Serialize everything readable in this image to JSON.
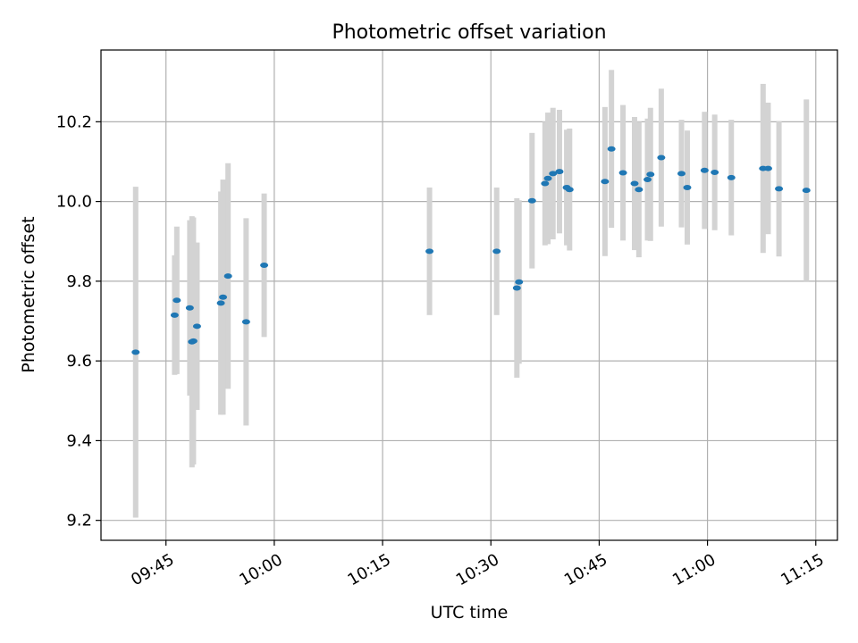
{
  "chart_data": {
    "type": "scatter",
    "title": "Photometric offset variation",
    "xlabel": "UTC time",
    "ylabel": "Photometric offset",
    "x_tick_labels": [
      "09:45",
      "10:00",
      "10:15",
      "10:30",
      "10:45",
      "11:00",
      "11:15"
    ],
    "x_tick_values": [
      "09:45",
      "10:00",
      "10:15",
      "10:30",
      "10:45",
      "11:00",
      "11:15"
    ],
    "y_ticks": [
      9.2,
      9.4,
      9.6,
      9.8,
      10.0,
      10.2
    ],
    "xlim": [
      "09:36",
      "11:18"
    ],
    "ylim": [
      9.15,
      10.38
    ],
    "grid": true,
    "colors": {
      "marker": "#1f77b4",
      "errorbar": "#d3d3d3",
      "grid": "#b0b0b0"
    },
    "points": [
      {
        "x": "09:40:48",
        "y": 9.622,
        "yerr": 0.415
      },
      {
        "x": "09:46:12",
        "y": 9.715,
        "yerr": 0.15
      },
      {
        "x": "09:46:30",
        "y": 9.752,
        "yerr": 0.185
      },
      {
        "x": "09:48:18",
        "y": 9.733,
        "yerr": 0.22
      },
      {
        "x": "09:48:36",
        "y": 9.648,
        "yerr": 0.315
      },
      {
        "x": "09:48:48",
        "y": 9.65,
        "yerr": 0.31
      },
      {
        "x": "09:49:18",
        "y": 9.687,
        "yerr": 0.21
      },
      {
        "x": "09:52:36",
        "y": 9.745,
        "yerr": 0.28
      },
      {
        "x": "09:52:54",
        "y": 9.76,
        "yerr": 0.295
      },
      {
        "x": "09:53:36",
        "y": 9.813,
        "yerr": 0.283
      },
      {
        "x": "09:56:06",
        "y": 9.698,
        "yerr": 0.26
      },
      {
        "x": "09:58:36",
        "y": 9.84,
        "yerr": 0.18
      },
      {
        "x": "10:21:30",
        "y": 9.875,
        "yerr": 0.16
      },
      {
        "x": "10:30:48",
        "y": 9.875,
        "yerr": 0.16
      },
      {
        "x": "10:33:36",
        "y": 9.783,
        "yerr": 0.225
      },
      {
        "x": "10:33:54",
        "y": 9.798,
        "yerr": 0.205
      },
      {
        "x": "10:35:42",
        "y": 10.002,
        "yerr": 0.17
      },
      {
        "x": "10:37:30",
        "y": 10.045,
        "yerr": 0.155
      },
      {
        "x": "10:37:54",
        "y": 10.058,
        "yerr": 0.165
      },
      {
        "x": "10:38:36",
        "y": 10.07,
        "yerr": 0.165
      },
      {
        "x": "10:39:30",
        "y": 10.075,
        "yerr": 0.155
      },
      {
        "x": "10:40:30",
        "y": 10.035,
        "yerr": 0.145
      },
      {
        "x": "10:40:54",
        "y": 10.03,
        "yerr": 0.153
      },
      {
        "x": "10:45:48",
        "y": 10.05,
        "yerr": 0.187
      },
      {
        "x": "10:46:42",
        "y": 10.132,
        "yerr": 0.198
      },
      {
        "x": "10:48:18",
        "y": 10.072,
        "yerr": 0.17
      },
      {
        "x": "10:49:54",
        "y": 10.045,
        "yerr": 0.167
      },
      {
        "x": "10:50:30",
        "y": 10.03,
        "yerr": 0.17
      },
      {
        "x": "10:51:42",
        "y": 10.055,
        "yerr": 0.153
      },
      {
        "x": "10:52:06",
        "y": 10.068,
        "yerr": 0.167
      },
      {
        "x": "10:53:36",
        "y": 10.11,
        "yerr": 0.173
      },
      {
        "x": "10:56:24",
        "y": 10.07,
        "yerr": 0.135
      },
      {
        "x": "10:57:12",
        "y": 10.035,
        "yerr": 0.143
      },
      {
        "x": "10:59:36",
        "y": 10.078,
        "yerr": 0.147
      },
      {
        "x": "11:01:00",
        "y": 10.073,
        "yerr": 0.145
      },
      {
        "x": "11:03:18",
        "y": 10.06,
        "yerr": 0.145
      },
      {
        "x": "11:07:42",
        "y": 10.083,
        "yerr": 0.212
      },
      {
        "x": "11:08:24",
        "y": 10.083,
        "yerr": 0.165
      },
      {
        "x": "11:09:54",
        "y": 10.032,
        "yerr": 0.17
      },
      {
        "x": "11:13:42",
        "y": 10.028,
        "yerr": 0.228
      }
    ]
  }
}
